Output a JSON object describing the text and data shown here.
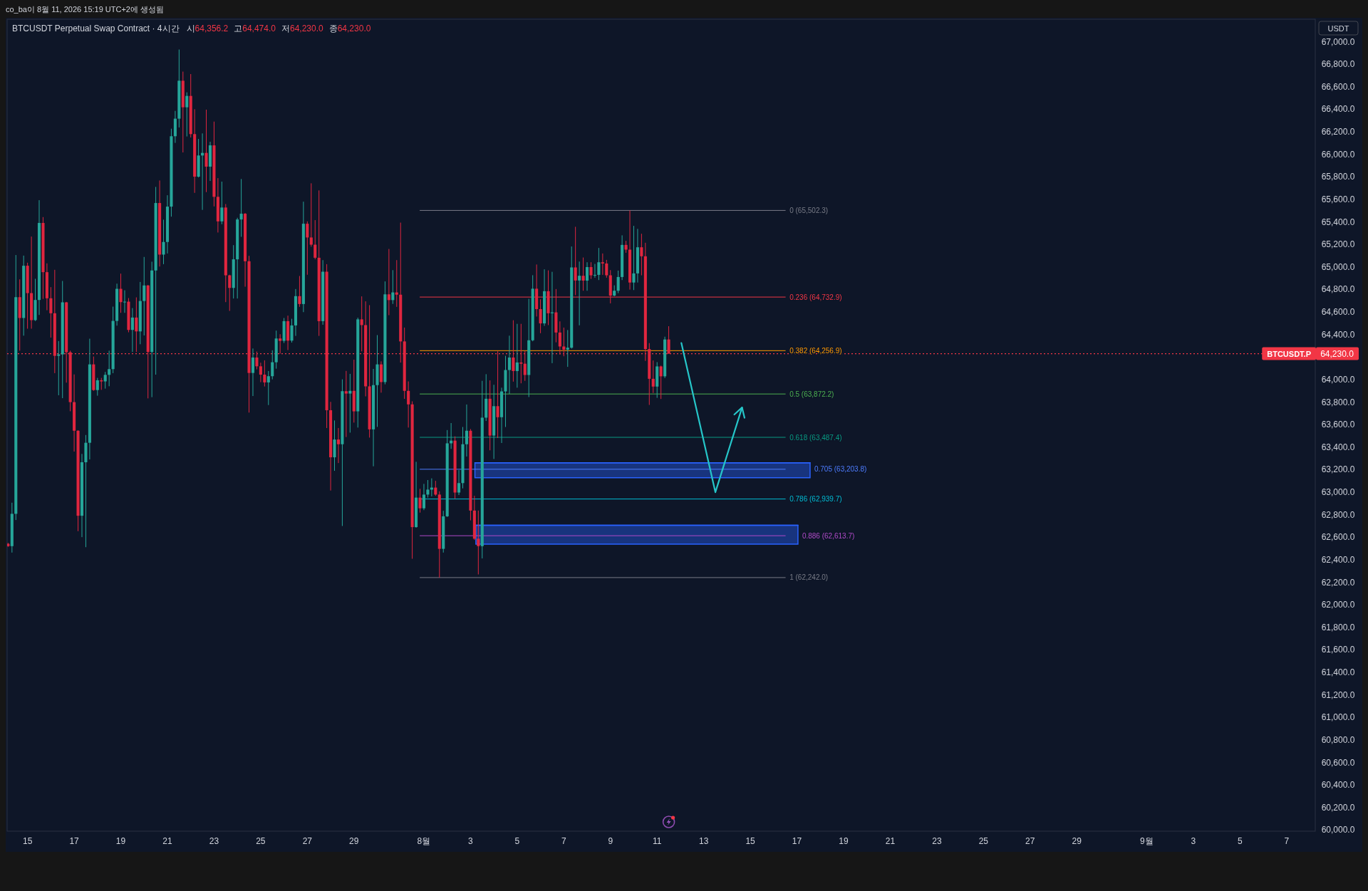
{
  "chart_data": {
    "type": "candlestick",
    "title": "BTCUSDT Perpetual Swap Contract · 4시간",
    "subtitle": "시64,356.2 고64,474.0 저64,230.0 종64,230.0",
    "ylabel": "USDT",
    "annotations": [
      "co_ba이 8월 11, 2026 15:19 UTC+2에 생성됨"
    ],
    "x": [
      "2026-07-14T04:00",
      "2026-07-14T08:00",
      "2026-07-14T12:00",
      "2026-07-14T16:00",
      "2026-07-14T20:00",
      "2026-07-15T00:00",
      "2026-07-15T04:00",
      "2026-07-15T08:00",
      "2026-07-15T12:00",
      "2026-07-15T16:00",
      "2026-07-15T20:00",
      "2026-07-16T00:00",
      "2026-07-16T04:00",
      "2026-07-16T08:00",
      "2026-07-16T12:00",
      "2026-07-16T16:00",
      "2026-07-16T20:00",
      "2026-07-17T00:00",
      "2026-07-17T04:00",
      "2026-07-17T08:00",
      "2026-07-17T12:00",
      "2026-07-17T16:00",
      "2026-07-17T20:00",
      "2026-07-18T00:00",
      "2026-07-18T04:00",
      "2026-07-18T08:00",
      "2026-07-18T12:00",
      "2026-07-18T16:00",
      "2026-07-18T20:00",
      "2026-07-19T00:00",
      "2026-07-19T04:00",
      "2026-07-19T08:00",
      "2026-07-19T12:00",
      "2026-07-19T16:00",
      "2026-07-19T20:00",
      "2026-07-20T00:00",
      "2026-07-20T04:00",
      "2026-07-20T08:00",
      "2026-07-20T12:00",
      "2026-07-20T16:00",
      "2026-07-20T20:00",
      "2026-07-21T00:00",
      "2026-07-21T04:00",
      "2026-07-21T08:00",
      "2026-07-21T12:00",
      "2026-07-21T16:00",
      "2026-07-21T20:00",
      "2026-07-22T00:00",
      "2026-07-22T04:00",
      "2026-07-22T08:00",
      "2026-07-22T12:00",
      "2026-07-22T16:00",
      "2026-07-22T20:00",
      "2026-07-23T00:00",
      "2026-07-23T04:00",
      "2026-07-23T08:00",
      "2026-07-23T12:00",
      "2026-07-23T16:00",
      "2026-07-23T20:00",
      "2026-07-24T00:00",
      "2026-07-24T04:00",
      "2026-07-24T08:00",
      "2026-07-24T12:00",
      "2026-07-24T16:00",
      "2026-07-24T20:00",
      "2026-07-25T00:00",
      "2026-07-25T04:00",
      "2026-07-25T08:00",
      "2026-07-25T12:00",
      "2026-07-25T16:00",
      "2026-07-25T20:00",
      "2026-07-26T00:00",
      "2026-07-26T04:00",
      "2026-07-26T08:00",
      "2026-07-26T12:00",
      "2026-07-26T16:00",
      "2026-07-26T20:00",
      "2026-07-27T00:00",
      "2026-07-27T04:00",
      "2026-07-27T08:00",
      "2026-07-27T12:00",
      "2026-07-27T16:00",
      "2026-07-27T20:00",
      "2026-07-28T00:00",
      "2026-07-28T04:00",
      "2026-07-28T08:00",
      "2026-07-28T12:00",
      "2026-07-28T16:00",
      "2026-07-28T20:00",
      "2026-07-29T00:00",
      "2026-07-29T04:00",
      "2026-07-29T08:00",
      "2026-07-29T12:00",
      "2026-07-29T16:00",
      "2026-07-29T20:00",
      "2026-07-30T00:00",
      "2026-07-30T04:00",
      "2026-07-30T08:00",
      "2026-07-30T12:00",
      "2026-07-30T16:00",
      "2026-07-30T20:00",
      "2026-07-31T00:00",
      "2026-07-31T04:00",
      "2026-07-31T08:00",
      "2026-07-31T12:00",
      "2026-07-31T16:00",
      "2026-07-31T20:00",
      "2026-08-01T00:00",
      "2026-08-01T04:00",
      "2026-08-01T08:00",
      "2026-08-01T12:00",
      "2026-08-01T16:00",
      "2026-08-01T20:00",
      "2026-08-02T00:00",
      "2026-08-02T04:00",
      "2026-08-02T08:00",
      "2026-08-02T12:00",
      "2026-08-02T16:00",
      "2026-08-02T20:00",
      "2026-08-03T00:00",
      "2026-08-03T04:00",
      "2026-08-03T08:00",
      "2026-08-03T12:00",
      "2026-08-03T16:00",
      "2026-08-03T20:00",
      "2026-08-04T00:00",
      "2026-08-04T04:00",
      "2026-08-04T08:00",
      "2026-08-04T12:00",
      "2026-08-04T16:00",
      "2026-08-04T20:00",
      "2026-08-05T00:00",
      "2026-08-05T04:00",
      "2026-08-05T08:00",
      "2026-08-05T12:00",
      "2026-08-05T16:00",
      "2026-08-05T20:00",
      "2026-08-06T00:00",
      "2026-08-06T04:00",
      "2026-08-06T08:00",
      "2026-08-06T12:00",
      "2026-08-06T16:00",
      "2026-08-06T20:00",
      "2026-08-07T00:00",
      "2026-08-07T04:00",
      "2026-08-07T08:00",
      "2026-08-07T12:00",
      "2026-08-07T16:00",
      "2026-08-07T20:00",
      "2026-08-08T00:00",
      "2026-08-08T04:00",
      "2026-08-08T08:00",
      "2026-08-08T12:00",
      "2026-08-08T16:00",
      "2026-08-08T20:00",
      "2026-08-09T00:00",
      "2026-08-09T04:00",
      "2026-08-09T08:00",
      "2026-08-09T12:00",
      "2026-08-09T16:00",
      "2026-08-09T20:00",
      "2026-08-10T00:00",
      "2026-08-10T04:00",
      "2026-08-10T08:00",
      "2026-08-10T12:00",
      "2026-08-10T16:00",
      "2026-08-10T20:00",
      "2026-08-11T00:00",
      "2026-08-11T04:00",
      "2026-08-11T08:00",
      "2026-08-11T12:00"
    ],
    "ohlc": [
      [
        62542,
        62550,
        62515,
        62521
      ],
      [
        62521,
        62907,
        62464,
        62808
      ],
      [
        62808,
        65106,
        62753,
        64732
      ],
      [
        64732,
        64890,
        64257,
        64547
      ],
      [
        64547,
        65101,
        64390,
        65011
      ],
      [
        65011,
        65038,
        64452,
        64768
      ],
      [
        64768,
        65270,
        64452,
        64528
      ],
      [
        64528,
        64895,
        64520,
        64707
      ],
      [
        64707,
        65593,
        64574,
        65391
      ],
      [
        65391,
        65443,
        64717,
        64954
      ],
      [
        64954,
        65032,
        64616,
        64722
      ],
      [
        64722,
        64821,
        64373,
        64589
      ],
      [
        64589,
        64975,
        64057,
        64211
      ],
      [
        64211,
        64342,
        63861,
        64224
      ],
      [
        64224,
        64876,
        63835,
        64686
      ],
      [
        64686,
        64690,
        63973,
        64243
      ],
      [
        64243,
        64257,
        63719,
        63800
      ],
      [
        63800,
        64046,
        63361,
        63546
      ],
      [
        63546,
        63550,
        62654,
        62791
      ],
      [
        62791,
        63340,
        62601,
        63266
      ],
      [
        63266,
        63508,
        62512,
        63439
      ],
      [
        63439,
        64363,
        63291,
        64135
      ],
      [
        64135,
        64205,
        63900,
        63907
      ],
      [
        63907,
        64015,
        63857,
        63994
      ],
      [
        63994,
        64015,
        63909,
        63984
      ],
      [
        63984,
        64068,
        63920,
        64042
      ],
      [
        64042,
        64257,
        63941,
        64093
      ],
      [
        64093,
        64648,
        64057,
        64521
      ],
      [
        64521,
        64852,
        64479,
        64806
      ],
      [
        64806,
        64941,
        64593,
        64688
      ],
      [
        64688,
        64793,
        64593,
        64692
      ],
      [
        64692,
        64724,
        64420,
        64441
      ],
      [
        64441,
        64635,
        64245,
        64551
      ],
      [
        64551,
        64730,
        64245,
        64428
      ],
      [
        64428,
        64867,
        64314,
        64698
      ],
      [
        64698,
        65089,
        64392,
        64836
      ],
      [
        64836,
        64840,
        63833,
        64245
      ],
      [
        64245,
        65047,
        63844,
        64969
      ],
      [
        64969,
        65711,
        64044,
        65568
      ],
      [
        65568,
        65768,
        65004,
        65110
      ],
      [
        65110,
        65420,
        65025,
        65222
      ],
      [
        65222,
        65637,
        65120,
        65536
      ],
      [
        65536,
        66228,
        65447,
        66161
      ],
      [
        66161,
        66386,
        66102,
        66317
      ],
      [
        66317,
        66931,
        66239,
        66654
      ],
      [
        66654,
        66735,
        66017,
        66418
      ],
      [
        66418,
        66551,
        66159,
        66519
      ],
      [
        66519,
        66713,
        66150,
        66180
      ],
      [
        66180,
        66401,
        65658,
        65802
      ],
      [
        65802,
        66137,
        65795,
        65990
      ],
      [
        65990,
        66186,
        65507,
        66013
      ],
      [
        66013,
        66397,
        65665,
        65891
      ],
      [
        65891,
        66112,
        65764,
        66080
      ],
      [
        66080,
        66291,
        65538,
        65623
      ],
      [
        65623,
        65789,
        65306,
        65405
      ],
      [
        65405,
        65758,
        65380,
        65528
      ],
      [
        65528,
        65559,
        64688,
        64926
      ],
      [
        64926,
        64931,
        64610,
        64814
      ],
      [
        64814,
        65194,
        64720,
        65068
      ],
      [
        65068,
        65437,
        64720,
        65422
      ],
      [
        65422,
        65781,
        65268,
        65473
      ],
      [
        65473,
        65479,
        64825,
        65051
      ],
      [
        65051,
        65099,
        63707,
        64059
      ],
      [
        64059,
        64276,
        63854,
        64196
      ],
      [
        64196,
        64249,
        64091,
        64118
      ],
      [
        64118,
        64150,
        63977,
        64044
      ],
      [
        64044,
        64171,
        63939,
        63975
      ],
      [
        63975,
        64076,
        63774,
        64030
      ],
      [
        64030,
        64260,
        64002,
        64154
      ],
      [
        64154,
        64435,
        64097,
        64365
      ],
      [
        64365,
        64403,
        64230,
        64344
      ],
      [
        64344,
        64547,
        64325,
        64519
      ],
      [
        64519,
        64568,
        64262,
        64346
      ],
      [
        64346,
        64540,
        64329,
        64481
      ],
      [
        64481,
        64804,
        64388,
        64741
      ],
      [
        64741,
        64920,
        64646,
        64671
      ],
      [
        64671,
        65580,
        64599,
        65384
      ],
      [
        65384,
        65405,
        64931,
        65262
      ],
      [
        65262,
        65743,
        65180,
        65198
      ],
      [
        65198,
        65416,
        65068,
        65082
      ],
      [
        65082,
        65680,
        64388,
        64519
      ],
      [
        64519,
        65061,
        64487,
        64958
      ],
      [
        64958,
        65025,
        63570,
        63728
      ],
      [
        63728,
        63802,
        63015,
        63310
      ],
      [
        63310,
        63637,
        63190,
        63468
      ],
      [
        63468,
        63570,
        63259,
        63426
      ],
      [
        63426,
        64002,
        62700,
        63897
      ],
      [
        63897,
        64077,
        63490,
        63876
      ],
      [
        63876,
        64051,
        63529,
        63900
      ],
      [
        63900,
        64177,
        63618,
        63718
      ],
      [
        63718,
        64550,
        63574,
        64535
      ],
      [
        64535,
        64739,
        64251,
        64484
      ],
      [
        64484,
        64695,
        63851,
        63940
      ],
      [
        63940,
        64661,
        63485,
        63558
      ],
      [
        63558,
        64095,
        63230,
        63951
      ],
      [
        63951,
        64395,
        63580,
        64135
      ],
      [
        64135,
        64162,
        63884,
        63978
      ],
      [
        63978,
        64872,
        63958,
        64757
      ],
      [
        64757,
        65160,
        64572,
        64706
      ],
      [
        64706,
        64972,
        64672,
        64774
      ],
      [
        64774,
        65061,
        64646,
        64754
      ],
      [
        64754,
        65394,
        64151,
        64339
      ],
      [
        64339,
        64462,
        63829,
        63900
      ],
      [
        63900,
        63984,
        63574,
        63780
      ],
      [
        63780,
        63807,
        62409,
        62690
      ],
      [
        62690,
        63270,
        62685,
        62952
      ],
      [
        62952,
        63030,
        62819,
        62857
      ],
      [
        62857,
        63074,
        62841,
        62979
      ],
      [
        62979,
        63108,
        62952,
        63023
      ],
      [
        63023,
        63123,
        62963,
        63041
      ],
      [
        63041,
        63101,
        62968,
        62979
      ],
      [
        62979,
        63008,
        62242,
        62497
      ],
      [
        62497,
        62835,
        62464,
        62786
      ],
      [
        62786,
        63552,
        62780,
        63434
      ],
      [
        63434,
        63614,
        63385,
        63458
      ],
      [
        63458,
        63496,
        62941,
        62997
      ],
      [
        62997,
        63196,
        62975,
        63081
      ],
      [
        63081,
        63579,
        63034,
        63426
      ],
      [
        63426,
        63779,
        63317,
        63546
      ],
      [
        63546,
        63561,
        62750,
        62837
      ],
      [
        62837,
        62968,
        62576,
        62587
      ],
      [
        62587,
        62837,
        62270,
        62521
      ],
      [
        62521,
        63989,
        62412,
        63662
      ],
      [
        63662,
        64048,
        63633,
        63830
      ],
      [
        63830,
        63993,
        63372,
        63503
      ],
      [
        63503,
        63954,
        63295,
        63764
      ],
      [
        63764,
        64251,
        63481,
        63666
      ],
      [
        63666,
        63928,
        63437,
        63895
      ],
      [
        63895,
        64211,
        63579,
        64085
      ],
      [
        64085,
        64390,
        63873,
        64196
      ],
      [
        64196,
        64527,
        63982,
        64076
      ],
      [
        64076,
        64495,
        63928,
        64152
      ],
      [
        64152,
        64495,
        63967,
        64141
      ],
      [
        64141,
        64255,
        63989,
        64041
      ],
      [
        64041,
        64717,
        63845,
        64349
      ],
      [
        64349,
        64927,
        64340,
        64807
      ],
      [
        64807,
        65022,
        64560,
        64626
      ],
      [
        64626,
        64713,
        64412,
        64499
      ],
      [
        64499,
        64979,
        64477,
        64785
      ],
      [
        64785,
        64970,
        64484,
        64589
      ],
      [
        64589,
        64957,
        64146,
        64597
      ],
      [
        64597,
        64804,
        64331,
        64418
      ],
      [
        64418,
        64517,
        64222,
        64294
      ],
      [
        64294,
        64462,
        64207,
        64266
      ],
      [
        64266,
        64440,
        64113,
        64283
      ],
      [
        64283,
        65182,
        64275,
        64996
      ],
      [
        64996,
        65357,
        64750,
        64880
      ],
      [
        64880,
        65048,
        64482,
        64922
      ],
      [
        64922,
        65084,
        64789,
        64879
      ],
      [
        64879,
        65042,
        64789,
        64999
      ],
      [
        64999,
        65042,
        64894,
        64926
      ],
      [
        64926,
        65027,
        64905,
        64930
      ],
      [
        64930,
        65169,
        64884,
        65042
      ],
      [
        65042,
        65120,
        64930,
        65031
      ],
      [
        65031,
        65063,
        64905,
        64926
      ],
      [
        64926,
        64972,
        64677,
        64746
      ],
      [
        64746,
        64837,
        64740,
        64789
      ],
      [
        64789,
        64968,
        64768,
        64911
      ],
      [
        64911,
        65281,
        64884,
        65196
      ],
      [
        65196,
        65232,
        65126,
        65154
      ],
      [
        65154,
        65502.3,
        64799,
        64862
      ],
      [
        64862,
        65365,
        64795,
        64943
      ],
      [
        64943,
        65338,
        64862,
        65175
      ],
      [
        65175,
        65295,
        64926,
        65095
      ],
      [
        65095,
        65215,
        64166,
        64271
      ],
      [
        64271,
        64324,
        63775,
        64007
      ],
      [
        64007,
        64170,
        63881,
        63938
      ],
      [
        63938,
        64155,
        63838,
        64117
      ],
      [
        64117,
        64124,
        63828,
        64029
      ],
      [
        64029,
        64381,
        64014,
        64356.2
      ],
      [
        64356.2,
        64474.0,
        64230.0,
        64230.0
      ]
    ],
    "colors": [
      "#e0263f",
      "#26a69a",
      "#26a69a",
      "#e0263f",
      "#26a69a",
      "#e0263f",
      "#e0263f",
      "#26a69a",
      "#26a69a",
      "#e0263f",
      "#e0263f",
      "#e0263f",
      "#e0263f",
      "#26a69a",
      "#26a69a",
      "#e0263f",
      "#e0263f",
      "#e0263f",
      "#e0263f",
      "#26a69a",
      "#26a69a",
      "#26a69a",
      "#e0263f",
      "#26a69a",
      "#e0263f",
      "#26a69a",
      "#26a69a",
      "#26a69a",
      "#26a69a",
      "#e0263f",
      "#26a69a",
      "#e0263f",
      "#26a69a",
      "#e0263f",
      "#26a69a",
      "#26a69a",
      "#e0263f",
      "#26a69a",
      "#26a69a",
      "#e0263f",
      "#26a69a",
      "#26a69a",
      "#26a69a",
      "#26a69a",
      "#26a69a",
      "#e0263f",
      "#26a69a",
      "#e0263f",
      "#e0263f",
      "#26a69a",
      "#26a69a",
      "#e0263f",
      "#26a69a",
      "#e0263f",
      "#e0263f",
      "#26a69a",
      "#e0263f",
      "#e0263f",
      "#26a69a",
      "#26a69a",
      "#26a69a",
      "#e0263f",
      "#e0263f",
      "#26a69a",
      "#e0263f",
      "#e0263f",
      "#e0263f",
      "#26a69a",
      "#26a69a",
      "#26a69a",
      "#e0263f",
      "#26a69a",
      "#e0263f",
      "#26a69a",
      "#26a69a",
      "#e0263f",
      "#26a69a",
      "#e0263f",
      "#e0263f",
      "#e0263f",
      "#e0263f",
      "#26a69a",
      "#e0263f",
      "#e0263f",
      "#26a69a",
      "#e0263f",
      "#26a69a",
      "#e0263f",
      "#26a69a",
      "#e0263f",
      "#26a69a",
      "#e0263f",
      "#e0263f",
      "#e0263f",
      "#26a69a",
      "#26a69a",
      "#e0263f",
      "#26a69a",
      "#e0263f",
      "#26a69a",
      "#e0263f",
      "#e0263f",
      "#e0263f",
      "#e0263f",
      "#e0263f",
      "#26a69a",
      "#e0263f",
      "#26a69a",
      "#26a69a",
      "#26a69a",
      "#e0263f",
      "#e0263f",
      "#26a69a",
      "#26a69a",
      "#26a69a",
      "#e0263f",
      "#26a69a",
      "#26a69a",
      "#26a69a",
      "#e0263f",
      "#e0263f",
      "#e0263f",
      "#26a69a",
      "#26a69a",
      "#e0263f",
      "#26a69a",
      "#e0263f",
      "#26a69a",
      "#26a69a",
      "#26a69a",
      "#e0263f",
      "#26a69a",
      "#e0263f",
      "#e0263f",
      "#26a69a",
      "#26a69a",
      "#e0263f",
      "#e0263f",
      "#26a69a",
      "#e0263f",
      "#26a69a",
      "#e0263f",
      "#e0263f",
      "#e0263f",
      "#26a69a",
      "#26a69a",
      "#e0263f",
      "#26a69a",
      "#e0263f",
      "#26a69a",
      "#e0263f",
      "#26a69a",
      "#26a69a",
      "#e0263f",
      "#e0263f",
      "#e0263f",
      "#26a69a",
      "#26a69a",
      "#26a69a",
      "#e0263f",
      "#e0263f",
      "#26a69a",
      "#26a69a",
      "#e0263f",
      "#e0263f",
      "#e0263f",
      "#e0263f",
      "#26a69a",
      "#e0263f",
      "#26a69a",
      "#e0263f"
    ],
    "xlim": [
      "2026-07-14T03:00",
      "2026-09-08T05:30"
    ],
    "ylim": [
      59990,
      67200
    ],
    "xticks": [
      {
        "value": "2026-07-15",
        "label": "15"
      },
      {
        "value": "2026-07-17",
        "label": "17"
      },
      {
        "value": "2026-07-19",
        "label": "19"
      },
      {
        "value": "2026-07-21",
        "label": "21"
      },
      {
        "value": "2026-07-23",
        "label": "23"
      },
      {
        "value": "2026-07-25",
        "label": "25"
      },
      {
        "value": "2026-07-27",
        "label": "27"
      },
      {
        "value": "2026-07-29",
        "label": "29"
      },
      {
        "value": "2026-08-01",
        "label": "8월"
      },
      {
        "value": "2026-08-03",
        "label": "3"
      },
      {
        "value": "2026-08-05",
        "label": "5"
      },
      {
        "value": "2026-08-07",
        "label": "7"
      },
      {
        "value": "2026-08-09",
        "label": "9"
      },
      {
        "value": "2026-08-11",
        "label": "11"
      },
      {
        "value": "2026-08-13",
        "label": "13"
      },
      {
        "value": "2026-08-15",
        "label": "15"
      },
      {
        "value": "2026-08-17",
        "label": "17"
      },
      {
        "value": "2026-08-19",
        "label": "19"
      },
      {
        "value": "2026-08-21",
        "label": "21"
      },
      {
        "value": "2026-08-23",
        "label": "23"
      },
      {
        "value": "2026-08-25",
        "label": "25"
      },
      {
        "value": "2026-08-27",
        "label": "27"
      },
      {
        "value": "2026-08-29",
        "label": "29"
      },
      {
        "value": "2026-09-01",
        "label": "9월"
      },
      {
        "value": "2026-09-03",
        "label": "3"
      },
      {
        "value": "2026-09-05",
        "label": "5"
      },
      {
        "value": "2026-09-07",
        "label": "7"
      }
    ],
    "yticks": [
      {
        "value": 60000,
        "label": "60,000.0"
      },
      {
        "value": 60200,
        "label": "60,200.0"
      },
      {
        "value": 60400,
        "label": "60,400.0"
      },
      {
        "value": 60600,
        "label": "60,600.0"
      },
      {
        "value": 60800,
        "label": "60,800.0"
      },
      {
        "value": 61000,
        "label": "61,000.0"
      },
      {
        "value": 61200,
        "label": "61,200.0"
      },
      {
        "value": 61400,
        "label": "61,400.0"
      },
      {
        "value": 61600,
        "label": "61,600.0"
      },
      {
        "value": 61800,
        "label": "61,800.0"
      },
      {
        "value": 62000,
        "label": "62,000.0"
      },
      {
        "value": 62200,
        "label": "62,200.0"
      },
      {
        "value": 62400,
        "label": "62,400.0"
      },
      {
        "value": 62600,
        "label": "62,600.0"
      },
      {
        "value": 62800,
        "label": "62,800.0"
      },
      {
        "value": 63000,
        "label": "63,000.0"
      },
      {
        "value": 63200,
        "label": "63,200.0"
      },
      {
        "value": 63400,
        "label": "63,400.0"
      },
      {
        "value": 63600,
        "label": "63,600.0"
      },
      {
        "value": 63800,
        "label": "63,800.0"
      },
      {
        "value": 64000,
        "label": "64,000.0"
      },
      {
        "value": 64230.0,
        "label": "64,230.0"
      },
      {
        "value": 64400,
        "label": "64,400.0"
      },
      {
        "value": 64600,
        "label": "64,600.0"
      },
      {
        "value": 64800,
        "label": "64,800.0"
      },
      {
        "value": 65000,
        "label": "65,000.0"
      },
      {
        "value": 65200,
        "label": "65,200.0"
      },
      {
        "value": 65400,
        "label": "65,400.0"
      },
      {
        "value": 65600,
        "label": "65,600.0"
      },
      {
        "value": 65800,
        "label": "65,800.0"
      },
      {
        "value": 66000,
        "label": "66,000.0"
      },
      {
        "value": 66200,
        "label": "66,200.0"
      },
      {
        "value": 66400,
        "label": "66,400.0"
      },
      {
        "value": 66600,
        "label": "66,600.0"
      },
      {
        "value": 66800,
        "label": "66,800.0"
      },
      {
        "value": 67000,
        "label": "67,000.0"
      }
    ],
    "series": [
      {
        "type": "line",
        "color": "#2962ff",
        "x": [
          "2026-08-03T04:30",
          "2026-08-17T13:30"
        ],
        "values": [
          63262,
          63262
        ],
        "lower": [
          63128,
          63128
        ],
        "upper": [
          63262,
          63262
        ]
      },
      {
        "type": "line",
        "color": "#2962ff",
        "x": [
          "2026-08-03T05:30",
          "2026-08-17T01:00"
        ],
        "values": [
          62706,
          62706
        ],
        "lower": [
          62539,
          62539
        ],
        "upper": [
          62706,
          62706
        ]
      },
      {
        "type": "line",
        "name": "0 (65,502.3)",
        "color": "#787b86",
        "x": [
          "2026-07-31T20:00",
          "2026-08-16T12:00"
        ],
        "values": [
          65502.3,
          65502.3
        ]
      },
      {
        "type": "line",
        "name": "0.236 (64,732.9)",
        "color": "#f23645",
        "x": [
          "2026-07-31T20:00",
          "2026-08-16T12:00"
        ],
        "values": [
          64732.9,
          64732.9
        ]
      },
      {
        "type": "line",
        "name": "0.382 (64,256.9)",
        "color": "#ff9800",
        "x": [
          "2026-07-31T20:00",
          "2026-08-16T12:00"
        ],
        "values": [
          64256.9,
          64256.9
        ]
      },
      {
        "type": "line",
        "name": "0.5 (63,872.2)",
        "color": "#4caf50",
        "x": [
          "2026-07-31T20:00",
          "2026-08-16T12:00"
        ],
        "values": [
          63872.2,
          63872.2
        ]
      },
      {
        "type": "line",
        "name": "0.618 (63,487.4)",
        "color": "#089981",
        "x": [
          "2026-07-31T20:00",
          "2026-08-16T12:00"
        ],
        "values": [
          63487.4,
          63487.4
        ]
      },
      {
        "type": "line",
        "name": "0.705 (63,203.8)",
        "color": "#4d7cff",
        "x": [
          "2026-07-31T20:00",
          "2026-08-16T12:00"
        ],
        "values": [
          63203.8,
          63203.8
        ]
      },
      {
        "type": "line",
        "name": "0.786 (62,939.7)",
        "color": "#00bcd4",
        "x": [
          "2026-07-31T20:00",
          "2026-08-16T12:00"
        ],
        "values": [
          62939.7,
          62939.7
        ]
      },
      {
        "type": "line",
        "name": "0.886 (62,613.7)",
        "color": "#b04ac8",
        "x": [
          "2026-07-31T20:00",
          "2026-08-16T12:00"
        ],
        "values": [
          62613.7,
          62613.7
        ]
      },
      {
        "type": "line",
        "name": "1 (62,242.0)",
        "color": "#787b86",
        "x": [
          "2026-07-31T20:00",
          "2026-08-16T12:00"
        ],
        "values": [
          62242.0,
          62242.0
        ]
      },
      {
        "type": "line",
        "color": "#26c6c9",
        "x": [
          "2026-08-12T01:00",
          "2026-08-13T12:00",
          "2026-08-14T15:30"
        ],
        "values": [
          64325,
          63000,
          63752
        ]
      },
      {
        "type": "line",
        "color": "#26c6c9",
        "x": [
          "2026-08-14T07:30",
          "2026-08-14T15:30",
          "2026-08-14T18:00"
        ],
        "values": [
          63690,
          63752,
          63661
        ]
      }
    ],
    "ref_lines": [
      {
        "axis": "y",
        "value": 64230.0,
        "label": "BTCUSDT.P",
        "color": "#f23645",
        "line_style": "dotted"
      }
    ]
  }
}
